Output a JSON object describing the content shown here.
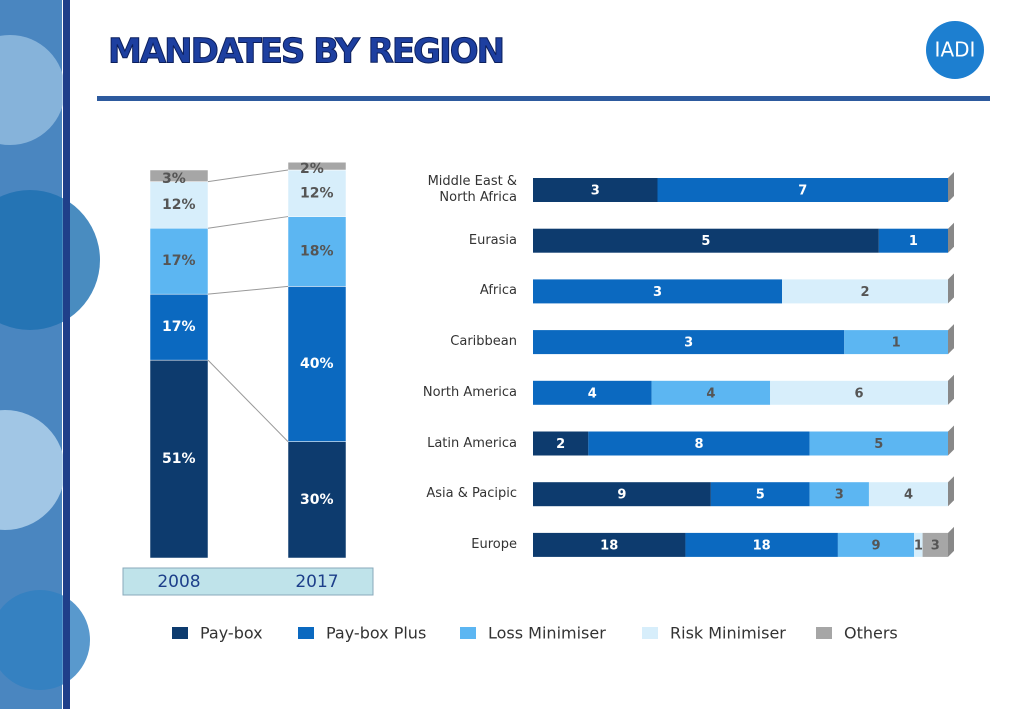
{
  "header": {
    "title": "MANDATES BY REGION",
    "logo": "IADI"
  },
  "chart_data": [
    {
      "type": "stacked-bar-percent",
      "categories": [
        "2008",
        "2017"
      ],
      "ylim": [
        0,
        100
      ],
      "series": [
        {
          "color": "#0d3b6e",
          "values": [
            51,
            30
          ],
          "value_labels": [
            "51%",
            "30%"
          ]
        },
        {
          "color": "#0b69c0",
          "values": [
            17,
            40
          ],
          "value_labels": [
            "17%",
            "40%"
          ]
        },
        {
          "color": "#5cb6f2",
          "values": [
            17,
            18
          ],
          "value_labels": [
            "17%",
            "18%"
          ]
        },
        {
          "color": "#d7eefb",
          "values": [
            12,
            12
          ],
          "value_labels": [
            "12%",
            "12%"
          ]
        },
        {
          "color": "#a6a6a6",
          "values": [
            3,
            2
          ],
          "value_labels": [
            "3%",
            "2%"
          ]
        }
      ]
    },
    {
      "type": "horizontal-stacked-bar-share",
      "categories": [
        "Middle East & North Africa",
        "Eurasia",
        "Africa",
        "Caribbean",
        "North America",
        "Latin America",
        "Asia & Pacipic",
        "Europe"
      ],
      "series": [
        {
          "name": "Pay-box",
          "color": "#0d3b6e",
          "values": [
            3,
            5,
            null,
            null,
            null,
            2,
            9,
            18
          ]
        },
        {
          "name": "Pay-box Plus",
          "color": "#0b69c0",
          "values": [
            7,
            1,
            3,
            3,
            4,
            8,
            5,
            18
          ]
        },
        {
          "name": "Loss Minimiser",
          "color": "#5cb6f2",
          "values": [
            null,
            null,
            null,
            1,
            4,
            5,
            3,
            9
          ]
        },
        {
          "name": "Risk Minimiser",
          "color": "#d7eefb",
          "values": [
            null,
            null,
            2,
            null,
            6,
            null,
            4,
            1
          ]
        },
        {
          "name": "Others",
          "color": "#a6a6a6",
          "values": [
            null,
            null,
            null,
            null,
            null,
            null,
            null,
            3
          ]
        }
      ]
    }
  ]
}
